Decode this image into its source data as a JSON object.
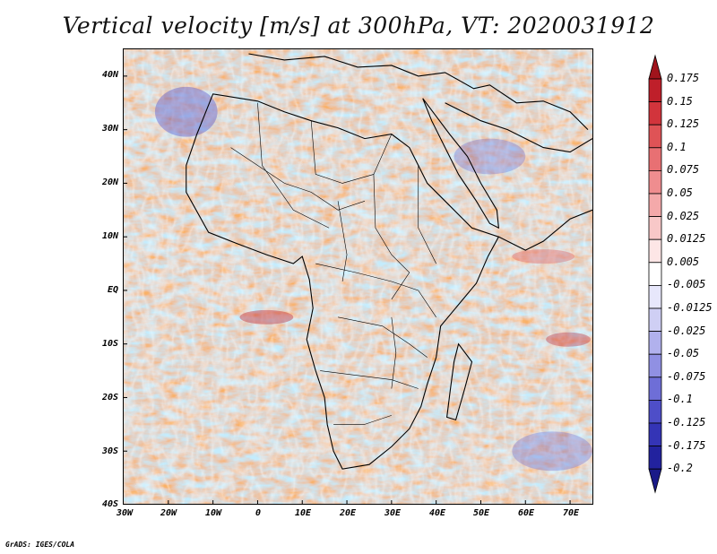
{
  "title": "Vertical velocity [m/s] at 300hPa, VT: 2020031912",
  "footer": "GrADS: IGES/COLA",
  "lat_labels": [
    "40N",
    "30N",
    "20N",
    "10N",
    "EQ",
    "10S",
    "20S",
    "30S",
    "40S"
  ],
  "lon_labels": [
    "30W",
    "20W",
    "10W",
    "0",
    "10E",
    "20E",
    "30E",
    "40E",
    "50E",
    "60E",
    "70E"
  ],
  "colorbar": {
    "labels": [
      "0.175",
      "0.15",
      "0.125",
      "0.1",
      "0.075",
      "0.05",
      "0.025",
      "0.0125",
      "0.005",
      "-0.005",
      "-0.0125",
      "-0.025",
      "-0.05",
      "-0.075",
      "-0.1",
      "-0.125",
      "-0.175",
      "-0.2"
    ],
    "colors": [
      "#a0141c",
      "#bf1f2a",
      "#d2343c",
      "#df5356",
      "#e87073",
      "#ef8d8f",
      "#f4a9aa",
      "#f8c8c8",
      "#fde6e6",
      "#ffffff",
      "#e7e7fb",
      "#cfcff4",
      "#b1b1ed",
      "#9090e3",
      "#6e6ed7",
      "#4e4ec8",
      "#3434b6",
      "#22229e",
      "#1a1a88"
    ]
  }
}
